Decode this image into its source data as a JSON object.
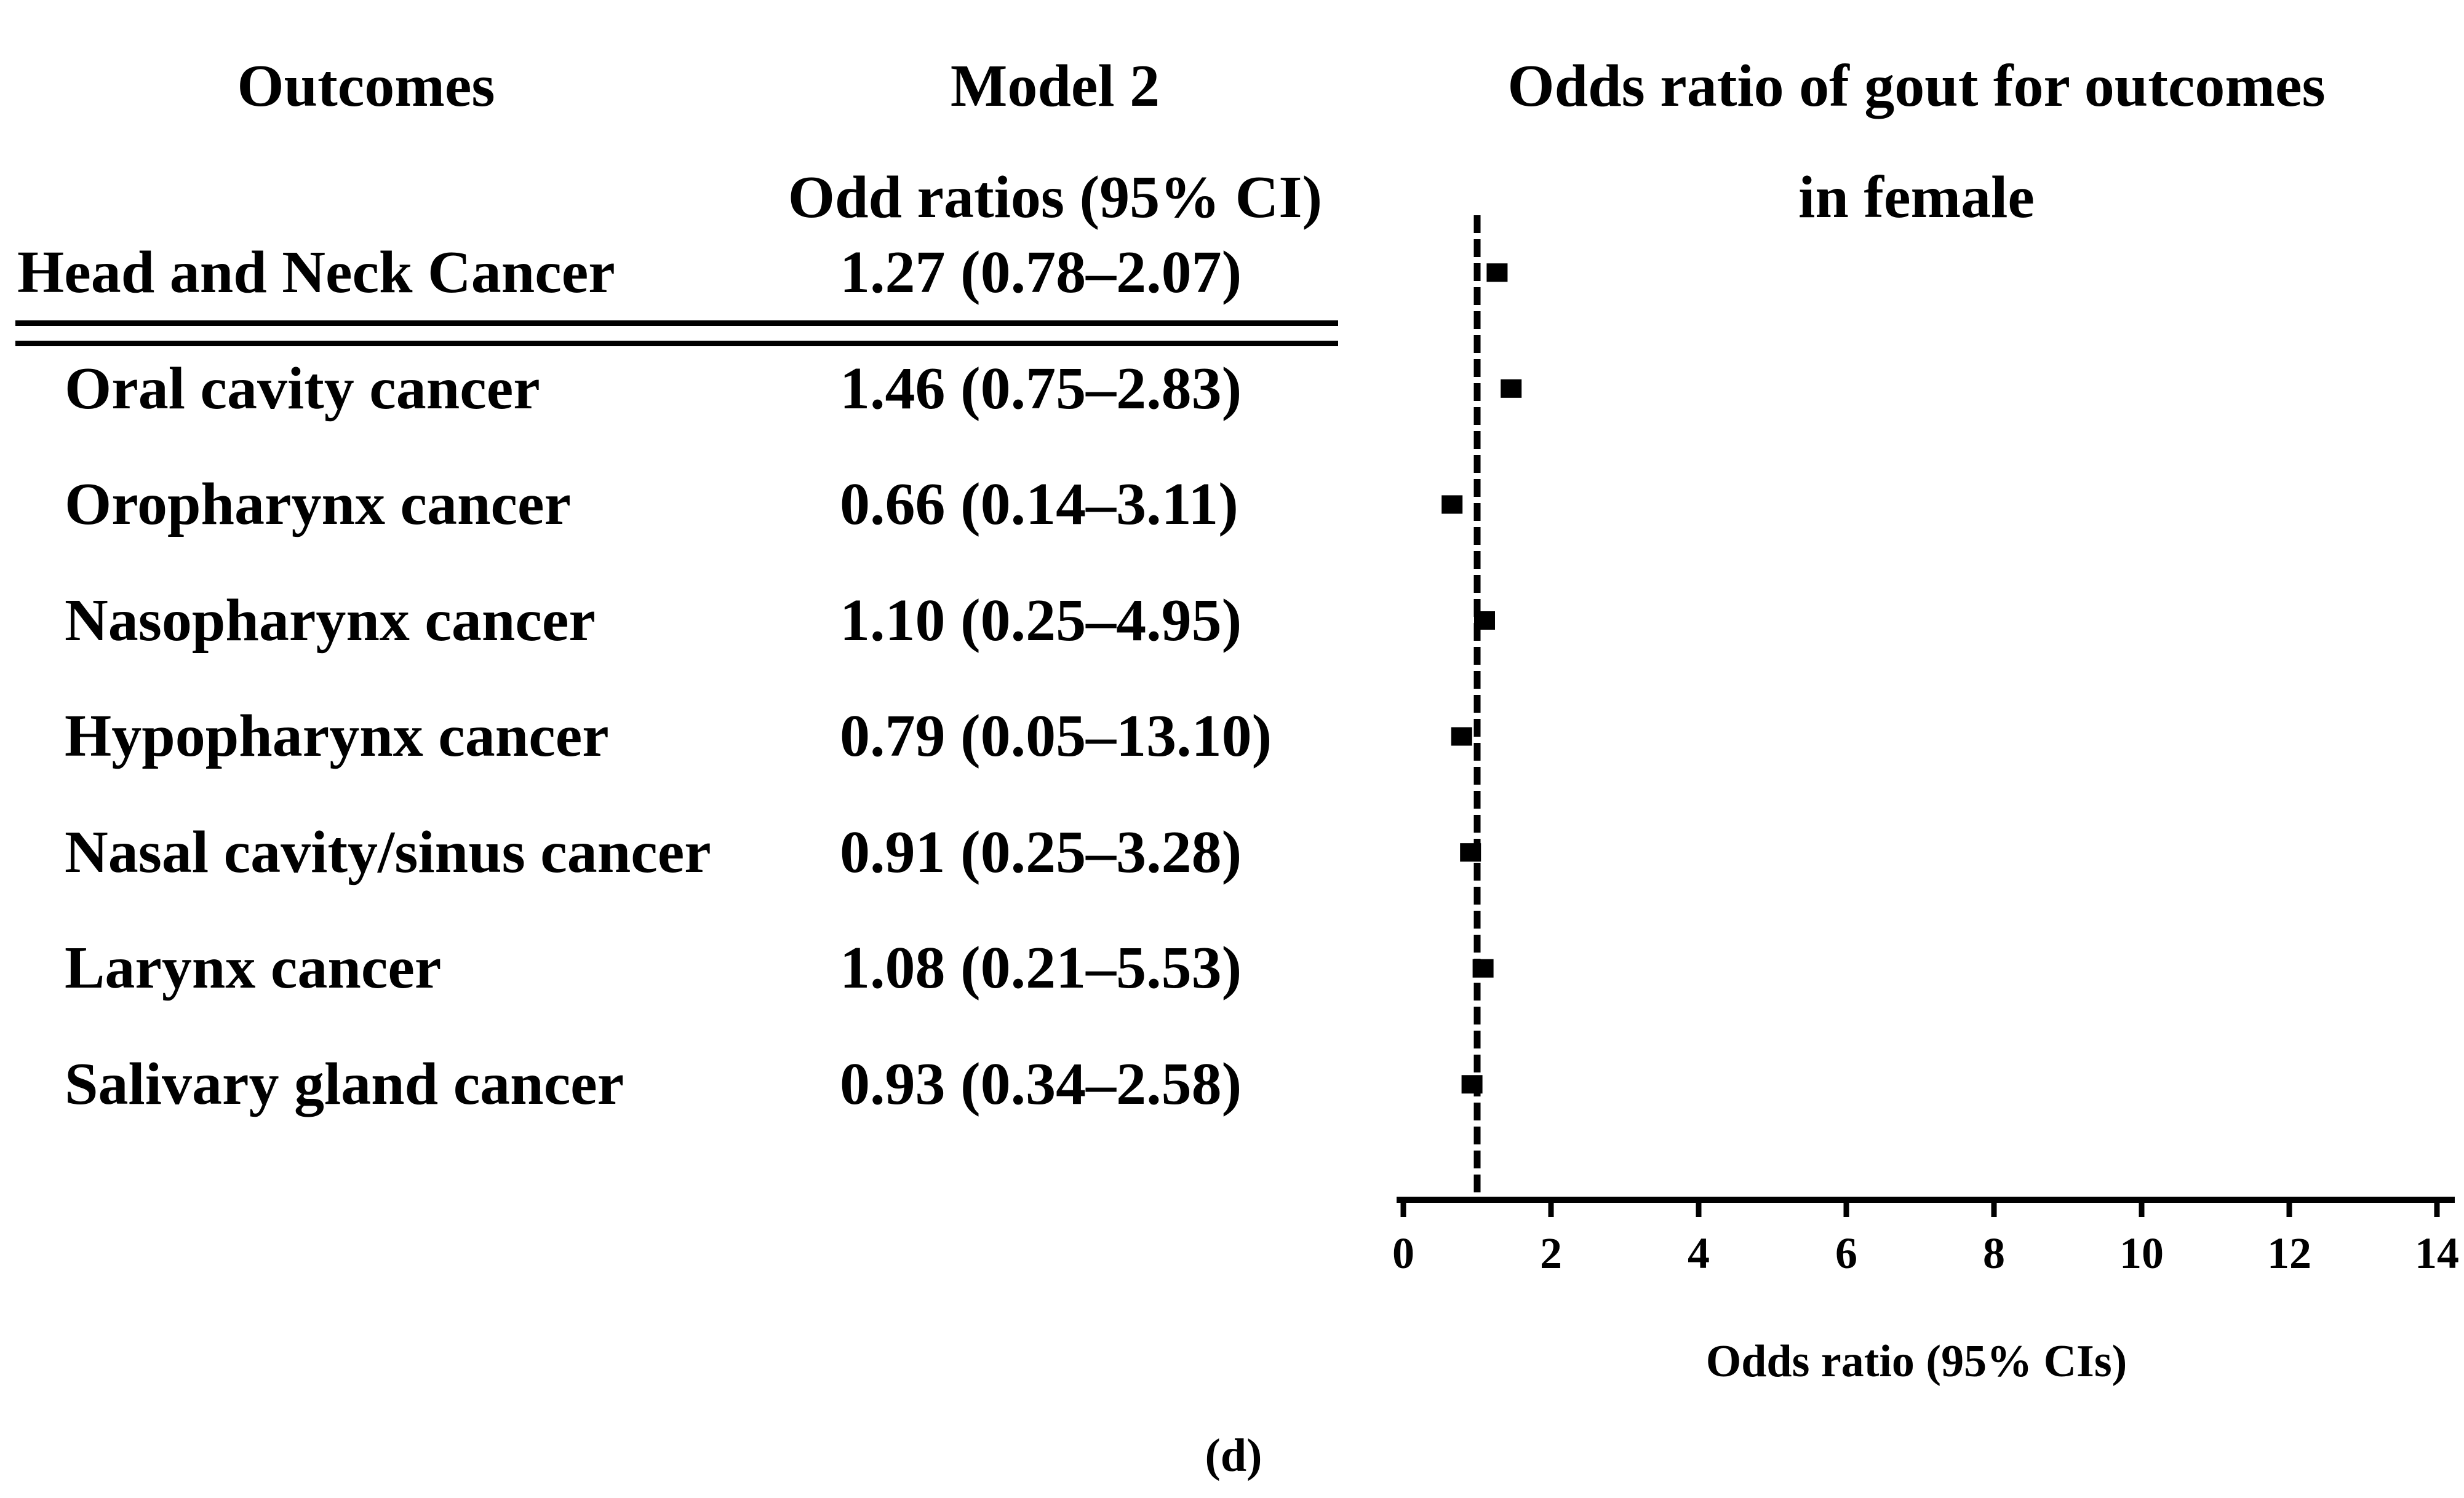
{
  "page": {
    "background": "#ffffff",
    "ink_color": "#000000"
  },
  "table": {
    "header": {
      "outcomes": "Outcomes",
      "model_line1": "Model 2",
      "model_line2": "Odd ratios (95% CI)"
    }
  },
  "plot": {
    "title_line1": "Odds ratio of gout for outcomes",
    "title_line2": "in female",
    "xlabel": "Odds ratio (95% CIs)"
  },
  "caption": "(d)",
  "chart_data": {
    "type": "scatter",
    "subtype": "forest-plot",
    "title": "Odds ratio of gout for outcomes in female",
    "xlabel": "Odds ratio (95% CIs)",
    "xlim": [
      0,
      14
    ],
    "x_ticks": [
      0,
      2,
      4,
      6,
      8,
      10,
      12,
      14
    ],
    "reference_line_x": 1,
    "reference_line_style": "dashed",
    "grid": false,
    "legend": "none",
    "marker": "filled-square",
    "marker_color": "#000000",
    "categories": [
      "Head and Neck Cancer",
      "Oral cavity cancer",
      "Oropharynx cancer",
      "Nasopharynx cancer",
      "Hypopharynx cancer",
      "Nasal cavity/sinus cancer",
      "Larynx cancer",
      "Salivary gland cancer"
    ],
    "series": [
      {
        "name": "Model 2 odds ratio",
        "values": [
          1.27,
          1.46,
          0.66,
          1.1,
          0.79,
          0.91,
          1.08,
          0.93
        ]
      }
    ],
    "points": [
      {
        "label": "Head and Neck Cancer",
        "or": 1.27,
        "ci_low": 0.78,
        "ci_high": 2.07,
        "or_text": "1.27 (0.78–2.07)",
        "group_header": true
      },
      {
        "label": "Oral cavity cancer",
        "or": 1.46,
        "ci_low": 0.75,
        "ci_high": 2.83,
        "or_text": "1.46 (0.75–2.83)",
        "group_header": false
      },
      {
        "label": "Oropharynx cancer",
        "or": 0.66,
        "ci_low": 0.14,
        "ci_high": 3.11,
        "or_text": "0.66 (0.14–3.11)",
        "group_header": false
      },
      {
        "label": "Nasopharynx cancer",
        "or": 1.1,
        "ci_low": 0.25,
        "ci_high": 4.95,
        "or_text": "1.10 (0.25–4.95)",
        "group_header": false
      },
      {
        "label": "Hypopharynx cancer",
        "or": 0.79,
        "ci_low": 0.05,
        "ci_high": 13.1,
        "or_text": "0.79 (0.05–13.10)",
        "group_header": false
      },
      {
        "label": "Nasal cavity/sinus cancer",
        "or": 0.91,
        "ci_low": 0.25,
        "ci_high": 3.28,
        "or_text": "0.91 (0.25–3.28)",
        "group_header": false
      },
      {
        "label": "Larynx cancer",
        "or": 1.08,
        "ci_low": 0.21,
        "ci_high": 5.53,
        "or_text": "1.08 (0.21–5.53)",
        "group_header": false
      },
      {
        "label": "Salivary gland cancer",
        "or": 0.93,
        "ci_low": 0.34,
        "ci_high": 2.58,
        "or_text": "0.93 (0.34–2.58)",
        "group_header": false
      }
    ]
  }
}
